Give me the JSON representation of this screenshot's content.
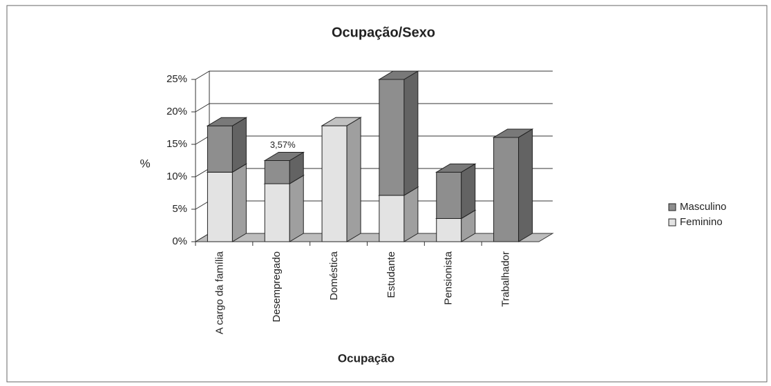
{
  "chart_data": {
    "type": "bar",
    "stacked": true,
    "three_d": true,
    "title": "Ocupação/Sexo",
    "x_label": "Ocupação",
    "y_label": "%",
    "categories": [
      "A cargo da família",
      "Desempregado",
      "Doméstica",
      "Estudante",
      "Pensionista",
      "Trabalhador"
    ],
    "series": [
      {
        "name": "Feminino",
        "color": "#e3e3e3",
        "values": [
          10.71,
          8.93,
          17.86,
          7.14,
          3.57,
          0
        ]
      },
      {
        "name": "Masculino",
        "color": "#8e8e8e",
        "values": [
          7.14,
          3.57,
          0,
          17.86,
          7.14,
          16.07
        ],
        "value_labels": [
          null,
          "3,57%",
          null,
          null,
          null,
          null
        ]
      }
    ],
    "ylim": [
      0,
      25
    ],
    "yticks": [
      {
        "value": 0,
        "label": "0%"
      },
      {
        "value": 5,
        "label": "5%"
      },
      {
        "value": 10,
        "label": "10%"
      },
      {
        "value": 15,
        "label": "15%"
      },
      {
        "value": 20,
        "label": "20%"
      },
      {
        "value": 25,
        "label": "25%"
      }
    ],
    "grid": true,
    "legend": "right"
  }
}
